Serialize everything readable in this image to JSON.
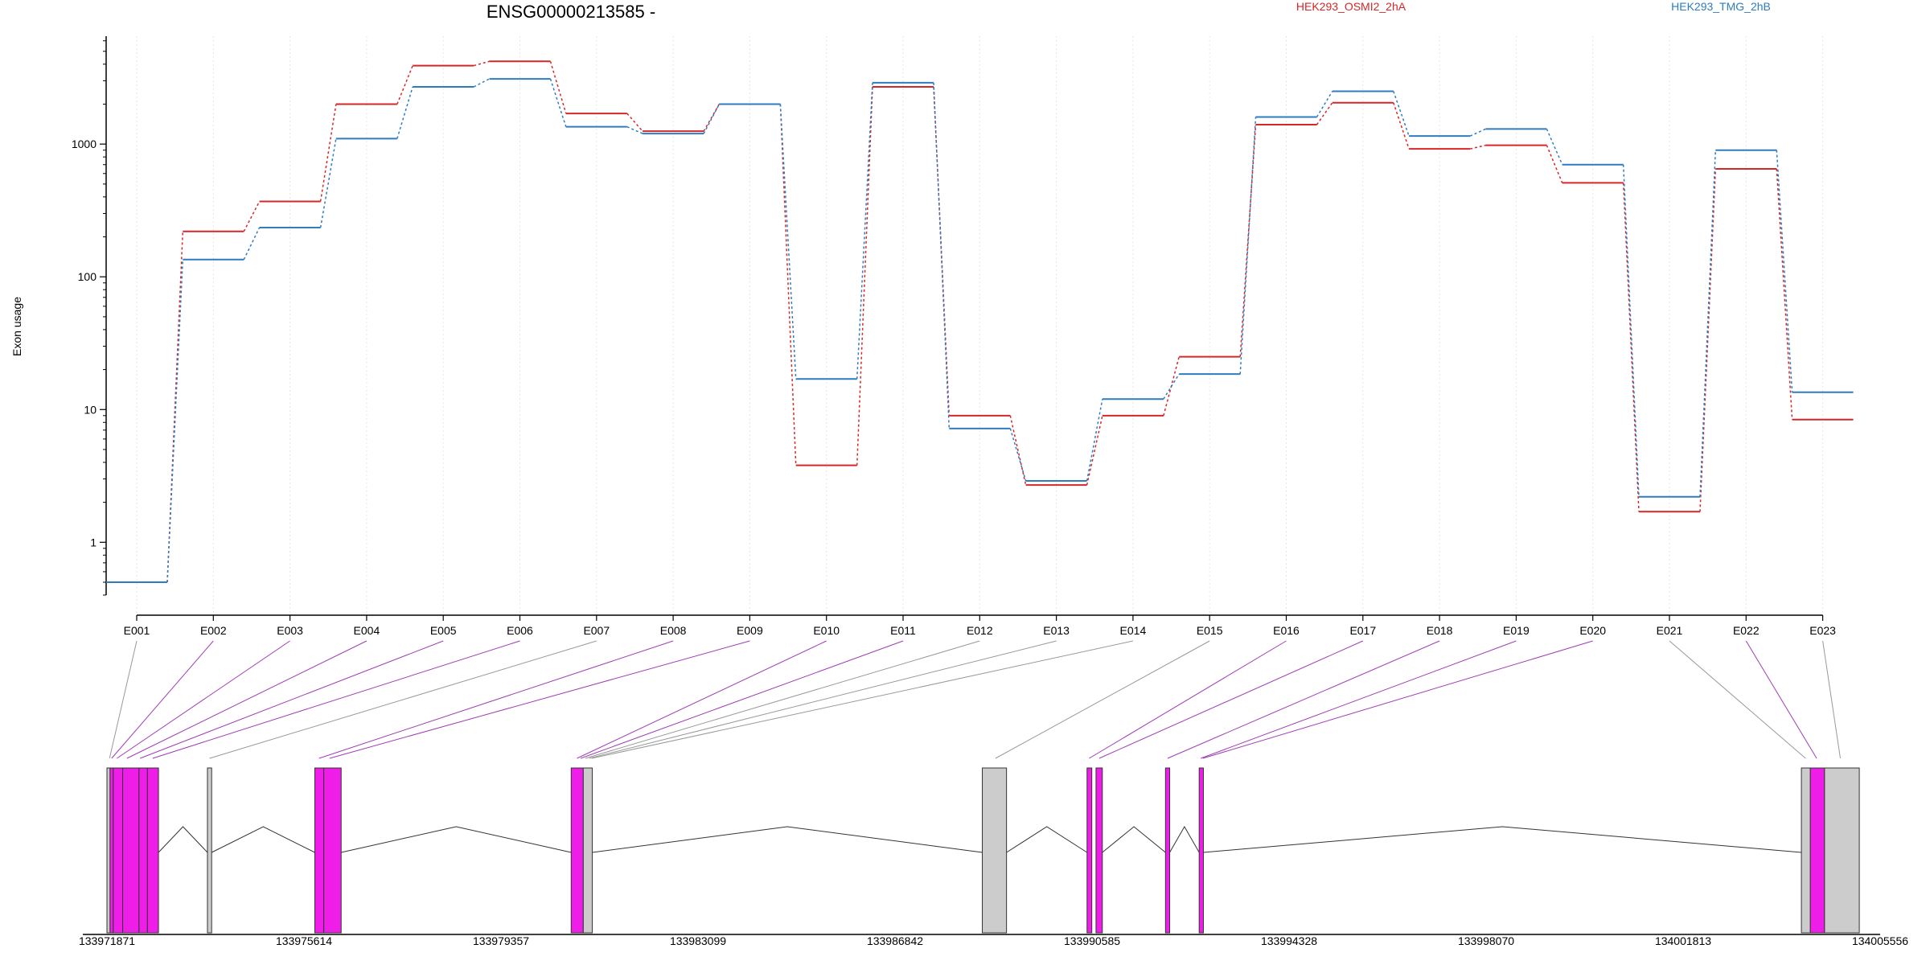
{
  "chart_data": {
    "type": "line",
    "title": "ENSG00000213585 -",
    "ylabel": "Exon usage",
    "yscale": "log",
    "ylim": [
      0.4,
      6500
    ],
    "yticks": [
      1,
      10,
      100,
      1000
    ],
    "grid": false,
    "legend_position": "top",
    "exons": [
      "E001",
      "E002",
      "E003",
      "E004",
      "E005",
      "E006",
      "E007",
      "E008",
      "E009",
      "E010",
      "E011",
      "E012",
      "E013",
      "E014",
      "E015",
      "E016",
      "E017",
      "E018",
      "E019",
      "E020",
      "E021",
      "E022",
      "E023"
    ],
    "series": [
      {
        "name": "HEK293_OSMI2_2hA",
        "color": "#d62728",
        "values": [
          0.5,
          220,
          370,
          2000,
          3900,
          4200,
          1700,
          1250,
          2000,
          3.8,
          2700,
          9,
          2.7,
          9,
          25,
          1400,
          2050,
          920,
          980,
          510,
          1.7,
          650,
          8.4
        ]
      },
      {
        "name": "HEK293_TMG_2hB",
        "color": "#2f7cbf",
        "values": [
          0.5,
          135,
          235,
          1100,
          2700,
          3100,
          1350,
          1200,
          2000,
          17,
          2900,
          7.2,
          2.9,
          12,
          18.5,
          1600,
          2500,
          1150,
          1300,
          700,
          2.2,
          900,
          13.5
        ]
      }
    ],
    "genome_axis": {
      "ticks": [
        "133971871",
        "133975614",
        "133979357",
        "133983099",
        "133986842",
        "133990585",
        "133994328",
        "133998070",
        "134001813",
        "134005556"
      ],
      "range": [
        133971871,
        134005556
      ]
    },
    "gene_model": {
      "highlight_color": "#ee1ee8",
      "plain_color": "#cccccc",
      "exons": [
        {
          "start": 133971871,
          "end": 133971930,
          "highlight": false
        },
        {
          "start": 133971930,
          "end": 133971990,
          "highlight": true
        },
        {
          "start": 133971990,
          "end": 133972170,
          "highlight": true
        },
        {
          "start": 133972170,
          "end": 133972480,
          "highlight": true
        },
        {
          "start": 133972480,
          "end": 133972640,
          "highlight": true
        },
        {
          "start": 133972640,
          "end": 133972850,
          "highlight": true
        },
        {
          "start": 133973780,
          "end": 133973860,
          "highlight": false
        },
        {
          "start": 133975820,
          "end": 133975990,
          "highlight": true
        },
        {
          "start": 133975990,
          "end": 133976320,
          "highlight": true
        },
        {
          "start": 133980690,
          "end": 133980920,
          "highlight": true
        },
        {
          "start": 133980920,
          "end": 133981090,
          "highlight": false
        },
        {
          "start": 133988500,
          "end": 133988960,
          "highlight": false
        },
        {
          "start": 133990490,
          "end": 133990580,
          "highlight": true
        },
        {
          "start": 133990660,
          "end": 133990780,
          "highlight": true
        },
        {
          "start": 133991980,
          "end": 133992060,
          "highlight": true
        },
        {
          "start": 133992620,
          "end": 133992700,
          "highlight": true
        },
        {
          "start": 134004060,
          "end": 134004230,
          "highlight": false
        },
        {
          "start": 134004230,
          "end": 134004500,
          "highlight": true
        },
        {
          "start": 134004500,
          "end": 134005160,
          "highlight": false
        }
      ],
      "introns": [
        [
          133972850,
          133973780
        ],
        [
          133973860,
          133975820
        ],
        [
          133976320,
          133980690
        ],
        [
          133981090,
          133988500
        ],
        [
          133988960,
          133990490
        ],
        [
          133990780,
          133991980
        ],
        [
          133992060,
          133992620
        ],
        [
          133992700,
          134004060
        ]
      ],
      "connectors": [
        {
          "exon": "E001",
          "pos": 133971920,
          "highlight": false
        },
        {
          "exon": "E002",
          "pos": 133971960,
          "highlight": true
        },
        {
          "exon": "E003",
          "pos": 133972060,
          "highlight": true
        },
        {
          "exon": "E004",
          "pos": 133972250,
          "highlight": true
        },
        {
          "exon": "E005",
          "pos": 133972500,
          "highlight": true
        },
        {
          "exon": "E006",
          "pos": 133972740,
          "highlight": true
        },
        {
          "exon": "E007",
          "pos": 133973820,
          "highlight": false
        },
        {
          "exon": "E008",
          "pos": 133975900,
          "highlight": true
        },
        {
          "exon": "E009",
          "pos": 133976100,
          "highlight": true
        },
        {
          "exon": "E010",
          "pos": 133980800,
          "highlight": true
        },
        {
          "exon": "E011",
          "pos": 133980870,
          "highlight": true
        },
        {
          "exon": "E012",
          "pos": 133980960,
          "highlight": false
        },
        {
          "exon": "E013",
          "pos": 133981030,
          "highlight": false
        },
        {
          "exon": "E014",
          "pos": 133981080,
          "highlight": false
        },
        {
          "exon": "E015",
          "pos": 133988750,
          "highlight": false
        },
        {
          "exon": "E016",
          "pos": 133990530,
          "highlight": true
        },
        {
          "exon": "E017",
          "pos": 133990720,
          "highlight": true
        },
        {
          "exon": "E018",
          "pos": 133992020,
          "highlight": true
        },
        {
          "exon": "E019",
          "pos": 133992650,
          "highlight": true
        },
        {
          "exon": "E020",
          "pos": 133992690,
          "highlight": true
        },
        {
          "exon": "E021",
          "pos": 134004140,
          "highlight": false
        },
        {
          "exon": "E022",
          "pos": 134004350,
          "highlight": true
        },
        {
          "exon": "E023",
          "pos": 134004800,
          "highlight": false
        }
      ]
    }
  }
}
